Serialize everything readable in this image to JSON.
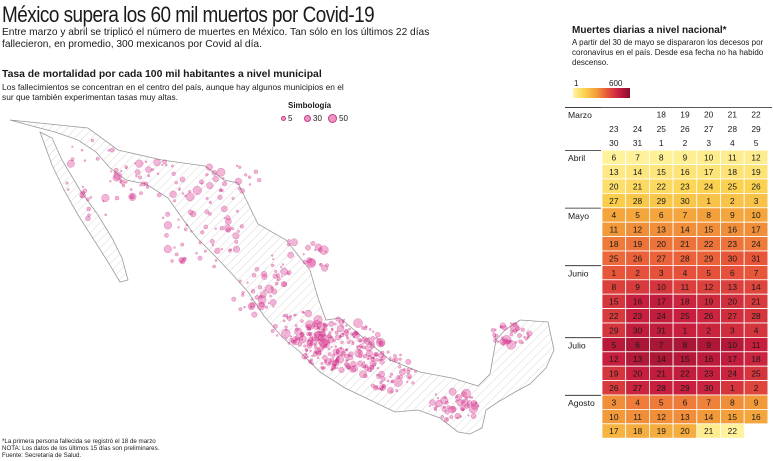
{
  "title": "México supera los 60 mil muertos por Covid-19",
  "intro": "Entre marzo y abril se triplicó el número de muertes en México. Tan sólo en los últimos 22 días fallecieron, en promedio, 300 mexicanos por Covid al día.",
  "map": {
    "heading": "Tasa de mortalidad por cada 100 mil habitantes a nivel municipal",
    "description": "Los fallecimientos se concentran en el centro del país, aunque hay algunos municipios en el sur que también experimentan tasas muy altas.",
    "legend_title": "Simbología",
    "legend_values": [
      "5",
      "30",
      "50"
    ]
  },
  "footnotes": [
    "*La primera persona fallecida se registró el 18 de marzo",
    "NOTA: Los datos de los últimos 15 días son preliminares.",
    "Fuente: Secretaría de Salud."
  ],
  "calendar": {
    "heading": "Muertes diarias a nivel nacional*",
    "description": "A partir del 30 de mayo se dispararon los decesos por coronavirus en el país. Desde esa fecha no ha habido descenso.",
    "scale_min": "1",
    "scale_max": "600",
    "months": [
      "Marzo",
      "Abril",
      "Mayo",
      "Junio",
      "Julio",
      "Agosto"
    ]
  },
  "chart_data": {
    "type": "heatmap",
    "title": "Muertes diarias a nivel nacional*",
    "color_scale": {
      "min": 1,
      "max": 600,
      "colors": [
        "#fff6a3",
        "#fbd24f",
        "#f3a03a",
        "#e8563a",
        "#c81f3f",
        "#8a0c2c"
      ]
    },
    "rows": [
      {
        "label": "Marzo",
        "days": [
          null,
          null,
          "18",
          "19",
          "20",
          "21",
          "22"
        ],
        "levels": [
          null,
          null,
          0,
          0,
          0,
          0,
          0
        ]
      },
      {
        "label": "",
        "days": [
          "23",
          "24",
          "25",
          "26",
          "27",
          "28",
          "29"
        ],
        "levels": [
          0,
          0,
          0,
          0,
          0,
          0,
          0
        ]
      },
      {
        "label": "",
        "days": [
          "30",
          "31",
          "1",
          "2",
          "3",
          "4",
          "5"
        ],
        "levels": [
          0,
          0,
          0,
          0,
          0,
          0,
          0
        ]
      },
      {
        "label": "Abril",
        "days": [
          "6",
          "7",
          "8",
          "9",
          "10",
          "11",
          "12"
        ],
        "levels": [
          0.02,
          0.02,
          0.03,
          0.04,
          0.05,
          0.05,
          0.05
        ]
      },
      {
        "label": "",
        "days": [
          "13",
          "14",
          "15",
          "16",
          "17",
          "18",
          "19"
        ],
        "levels": [
          0.07,
          0.09,
          0.09,
          0.1,
          0.1,
          0.11,
          0.11
        ]
      },
      {
        "label": "",
        "days": [
          "20",
          "21",
          "22",
          "23",
          "24",
          "25",
          "26"
        ],
        "levels": [
          0.13,
          0.16,
          0.16,
          0.18,
          0.2,
          0.2,
          0.2
        ]
      },
      {
        "label": "",
        "days": [
          "27",
          "28",
          "29",
          "30",
          "1",
          "2",
          "3"
        ],
        "levels": [
          0.22,
          0.24,
          0.24,
          0.25,
          0.26,
          0.26,
          0.27
        ]
      },
      {
        "label": "Mayo",
        "days": [
          "4",
          "5",
          "6",
          "7",
          "8",
          "9",
          "10"
        ],
        "levels": [
          0.38,
          0.38,
          0.38,
          0.38,
          0.4,
          0.38,
          0.38
        ]
      },
      {
        "label": "",
        "days": [
          "11",
          "12",
          "13",
          "14",
          "15",
          "16",
          "17"
        ],
        "levels": [
          0.42,
          0.45,
          0.45,
          0.45,
          0.45,
          0.45,
          0.45
        ]
      },
      {
        "label": "",
        "days": [
          "18",
          "19",
          "20",
          "21",
          "22",
          "23",
          "24"
        ],
        "levels": [
          0.5,
          0.52,
          0.52,
          0.52,
          0.52,
          0.52,
          0.5
        ]
      },
      {
        "label": "",
        "days": [
          "25",
          "26",
          "27",
          "28",
          "29",
          "30",
          "31"
        ],
        "levels": [
          0.55,
          0.57,
          0.57,
          0.57,
          0.57,
          0.6,
          0.6
        ]
      },
      {
        "label": "Junio",
        "days": [
          "1",
          "2",
          "3",
          "4",
          "5",
          "6",
          "7"
        ],
        "levels": [
          0.6,
          0.62,
          0.62,
          0.62,
          0.62,
          0.62,
          0.6
        ]
      },
      {
        "label": "",
        "days": [
          "8",
          "9",
          "10",
          "11",
          "12",
          "13",
          "14"
        ],
        "levels": [
          0.68,
          0.7,
          0.72,
          0.68,
          0.68,
          0.68,
          0.66
        ]
      },
      {
        "label": "",
        "days": [
          "15",
          "16",
          "17",
          "18",
          "19",
          "20",
          "21"
        ],
        "levels": [
          0.72,
          0.8,
          0.82,
          0.78,
          0.76,
          0.74,
          0.7
        ]
      },
      {
        "label": "",
        "days": [
          "22",
          "23",
          "24",
          "25",
          "26",
          "27",
          "28"
        ],
        "levels": [
          0.7,
          0.8,
          0.82,
          0.8,
          0.78,
          0.75,
          0.72
        ]
      },
      {
        "label": "",
        "days": [
          "29",
          "30",
          "31",
          "1",
          "2",
          "3",
          "4"
        ],
        "levels": [
          0.72,
          0.82,
          0.82,
          0.8,
          0.78,
          0.75,
          0.72
        ]
      },
      {
        "label": "Julio",
        "days": [
          "5",
          "6",
          "7",
          "8",
          "9",
          "10",
          "11"
        ],
        "levels": [
          0.85,
          0.9,
          0.9,
          0.9,
          0.88,
          0.86,
          0.8
        ]
      },
      {
        "label": "",
        "days": [
          "12",
          "13",
          "14",
          "15",
          "16",
          "17",
          "18"
        ],
        "levels": [
          0.8,
          0.86,
          0.88,
          0.86,
          0.84,
          0.82,
          0.78
        ]
      },
      {
        "label": "",
        "days": [
          "19",
          "20",
          "21",
          "22",
          "23",
          "24",
          "25"
        ],
        "levels": [
          0.72,
          0.8,
          0.82,
          0.82,
          0.8,
          0.78,
          0.72
        ]
      },
      {
        "label": "",
        "days": [
          "26",
          "27",
          "28",
          "29",
          "30",
          "1",
          "2"
        ],
        "levels": [
          0.7,
          0.78,
          0.8,
          0.8,
          0.78,
          0.72,
          0.66
        ]
      },
      {
        "label": "Agosto",
        "days": [
          "3",
          "4",
          "5",
          "6",
          "7",
          "8",
          "9"
        ],
        "levels": [
          0.45,
          0.5,
          0.5,
          0.5,
          0.48,
          0.45,
          0.42
        ]
      },
      {
        "label": "",
        "days": [
          "10",
          "11",
          "12",
          "13",
          "14",
          "15",
          "16"
        ],
        "levels": [
          0.42,
          0.45,
          0.45,
          0.45,
          0.42,
          0.4,
          0.38
        ]
      },
      {
        "label": "",
        "days": [
          "17",
          "18",
          "19",
          "20",
          "21",
          "22",
          null
        ],
        "levels": [
          0.32,
          0.35,
          0.35,
          0.35,
          0.05,
          0.02,
          null
        ]
      }
    ]
  }
}
